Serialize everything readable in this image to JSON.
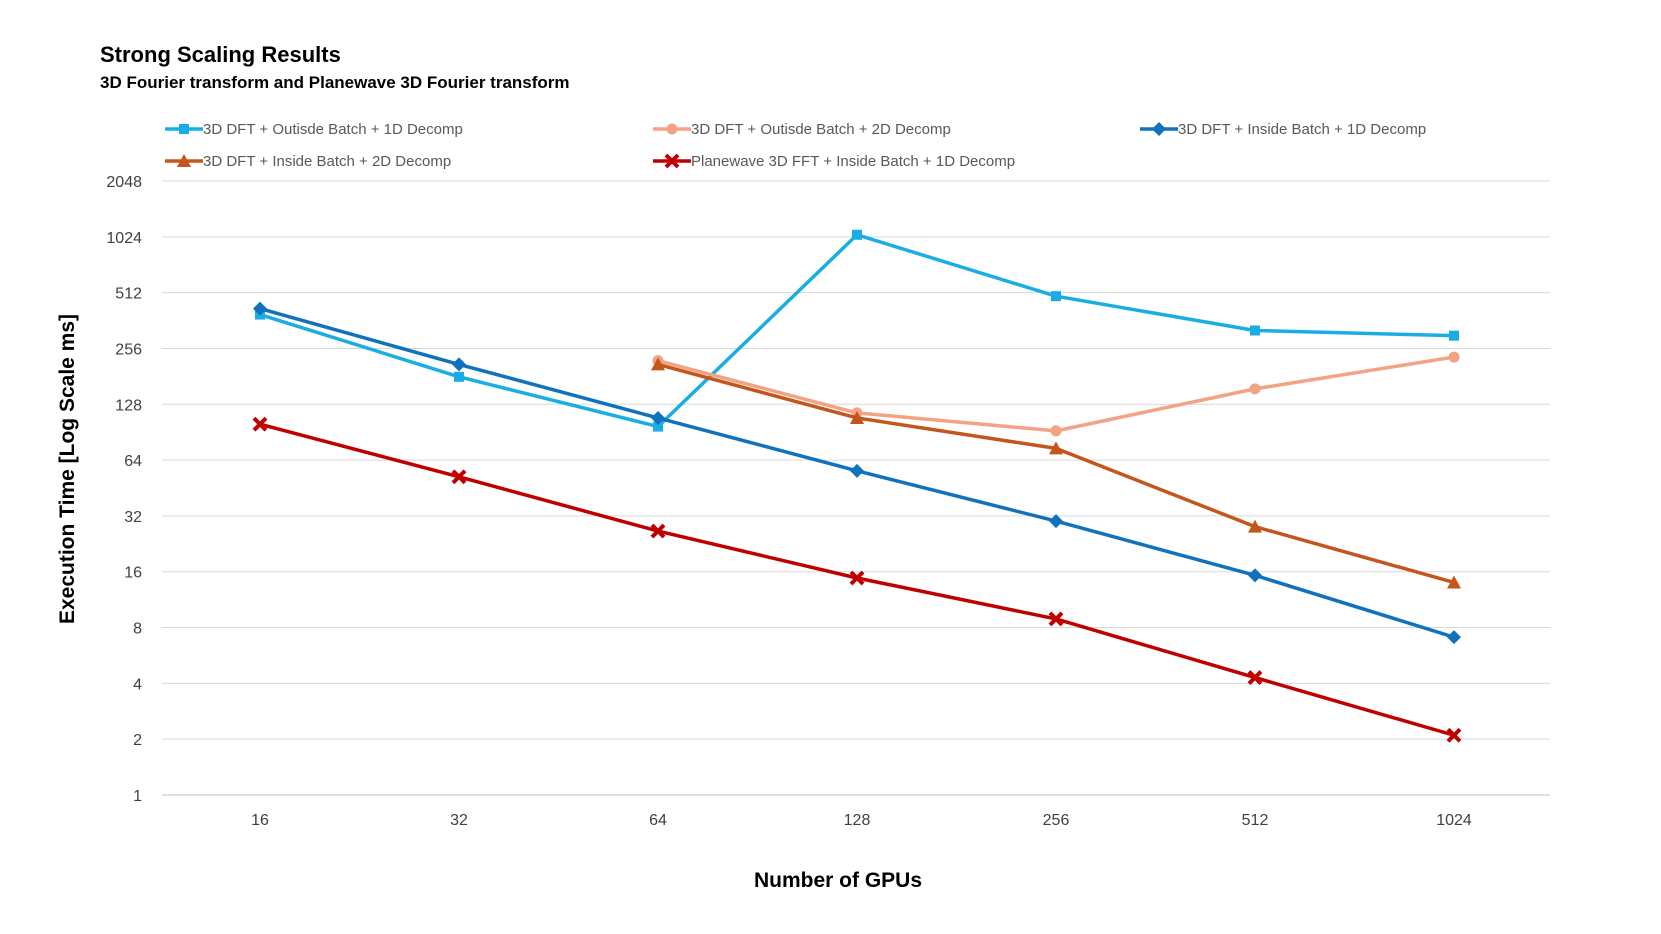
{
  "chart_data": {
    "type": "line",
    "title": "Strong Scaling Results",
    "subtitle": "3D Fourier transform and Planewave 3D Fourier transform",
    "xlabel": "Number of GPUs",
    "ylabel": "Execution Time [Log Scale ms]",
    "y_scale": "log2",
    "ylim": [
      1,
      2048
    ],
    "y_ticks": [
      "1",
      "2",
      "4",
      "8",
      "16",
      "32",
      "64",
      "128",
      "256",
      "512",
      "1024",
      "2048"
    ],
    "categories": [
      "16",
      "32",
      "64",
      "128",
      "256",
      "512",
      "1024"
    ],
    "grid": true,
    "legend_position": "top",
    "series": [
      {
        "name": "3D DFT + Outisde Batch + 1D Decomp",
        "color": "#1AADE4",
        "marker": "square",
        "values": [
          390,
          180,
          97,
          1050,
          490,
          320,
          300
        ]
      },
      {
        "name": "3D DFT + Outisde Batch + 2D Decomp",
        "color": "#F2A383",
        "marker": "circle",
        "values": [
          null,
          null,
          220,
          115,
          92,
          155,
          230
        ]
      },
      {
        "name": "3D DFT + Inside Batch + 1D Decomp",
        "color": "#1071BC",
        "marker": "diamond",
        "values": [
          420,
          210,
          108,
          56,
          30,
          15.3,
          7.1
        ]
      },
      {
        "name": "3D DFT + Inside Batch + 2D Decomp",
        "color": "#C5561B",
        "marker": "triangle",
        "values": [
          null,
          null,
          210,
          108,
          74,
          28,
          14
        ]
      },
      {
        "name": "Planewave 3D FFT + Inside Batch + 1D Decomp",
        "color": "#C00000",
        "marker": "x",
        "values": [
          100,
          52,
          26.5,
          14.8,
          8.9,
          4.3,
          2.1
        ]
      }
    ]
  }
}
